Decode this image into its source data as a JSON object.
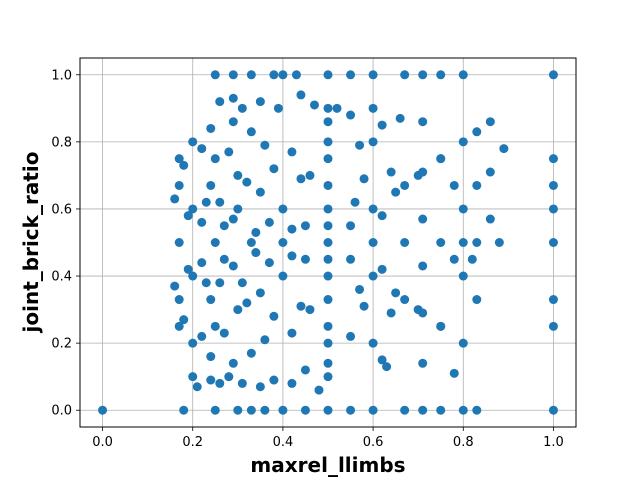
{
  "chart_data": {
    "type": "scatter",
    "xlabel": "maxrel_llimbs",
    "ylabel": "joint_brick_ratio",
    "xlim": [
      -0.05,
      1.05
    ],
    "ylim": [
      -0.05,
      1.05
    ],
    "x_ticks": [
      "0.0",
      "0.2",
      "0.4",
      "0.6",
      "0.8",
      "1.0"
    ],
    "y_ticks": [
      "0.0",
      "0.2",
      "0.4",
      "0.6",
      "0.8",
      "1.0"
    ],
    "grid": true,
    "marker_color": "#1f77b4",
    "series": [
      {
        "points": [
          [
            0.0,
            0.0
          ],
          [
            0.18,
            0.0
          ],
          [
            0.25,
            0.0
          ],
          [
            0.3,
            0.0
          ],
          [
            0.33,
            0.0
          ],
          [
            0.36,
            0.0
          ],
          [
            0.4,
            0.0
          ],
          [
            0.45,
            0.0
          ],
          [
            0.5,
            0.0
          ],
          [
            0.55,
            0.0
          ],
          [
            0.6,
            0.0
          ],
          [
            0.67,
            0.0
          ],
          [
            0.71,
            0.0
          ],
          [
            0.75,
            0.0
          ],
          [
            0.8,
            0.0
          ],
          [
            0.83,
            0.0
          ],
          [
            1.0,
            0.0
          ],
          [
            0.25,
            1.0
          ],
          [
            0.29,
            1.0
          ],
          [
            0.33,
            1.0
          ],
          [
            0.38,
            1.0
          ],
          [
            0.4,
            1.0
          ],
          [
            0.43,
            1.0
          ],
          [
            0.5,
            1.0
          ],
          [
            0.55,
            1.0
          ],
          [
            0.6,
            1.0
          ],
          [
            0.67,
            1.0
          ],
          [
            0.71,
            1.0
          ],
          [
            0.75,
            1.0
          ],
          [
            0.8,
            1.0
          ],
          [
            1.0,
            1.0
          ],
          [
            1.0,
            0.25
          ],
          [
            1.0,
            0.33
          ],
          [
            1.0,
            0.5
          ],
          [
            1.0,
            0.6
          ],
          [
            1.0,
            0.67
          ],
          [
            1.0,
            0.75
          ],
          [
            0.5,
            0.5
          ],
          [
            0.5,
            0.45
          ],
          [
            0.5,
            0.55
          ],
          [
            0.5,
            0.4
          ],
          [
            0.5,
            0.6
          ],
          [
            0.5,
            0.33
          ],
          [
            0.5,
            0.67
          ],
          [
            0.5,
            0.25
          ],
          [
            0.5,
            0.75
          ],
          [
            0.5,
            0.2
          ],
          [
            0.5,
            0.8
          ],
          [
            0.5,
            0.14
          ],
          [
            0.5,
            0.86
          ],
          [
            0.5,
            0.1
          ],
          [
            0.5,
            0.9
          ],
          [
            0.45,
            0.45
          ],
          [
            0.4,
            0.4
          ],
          [
            0.35,
            0.35
          ],
          [
            0.3,
            0.3
          ],
          [
            0.25,
            0.25
          ],
          [
            0.2,
            0.2
          ],
          [
            0.45,
            0.55
          ],
          [
            0.4,
            0.6
          ],
          [
            0.35,
            0.65
          ],
          [
            0.3,
            0.7
          ],
          [
            0.25,
            0.75
          ],
          [
            0.2,
            0.8
          ],
          [
            0.55,
            0.45
          ],
          [
            0.6,
            0.4
          ],
          [
            0.65,
            0.35
          ],
          [
            0.7,
            0.3
          ],
          [
            0.75,
            0.25
          ],
          [
            0.55,
            0.55
          ],
          [
            0.6,
            0.6
          ],
          [
            0.65,
            0.65
          ],
          [
            0.7,
            0.7
          ],
          [
            0.75,
            0.75
          ],
          [
            0.25,
            0.5
          ],
          [
            0.33,
            0.5
          ],
          [
            0.4,
            0.5
          ],
          [
            0.6,
            0.5
          ],
          [
            0.67,
            0.5
          ],
          [
            0.75,
            0.5
          ],
          [
            0.8,
            0.5
          ],
          [
            0.83,
            0.5
          ],
          [
            0.8,
            0.2
          ],
          [
            0.8,
            0.4
          ],
          [
            0.8,
            0.6
          ],
          [
            0.8,
            0.8
          ],
          [
            0.67,
            0.33
          ],
          [
            0.67,
            0.67
          ],
          [
            0.6,
            0.2
          ],
          [
            0.6,
            0.8
          ],
          [
            0.75,
            0.25
          ],
          [
            0.75,
            0.75
          ],
          [
            0.71,
            0.86
          ],
          [
            0.71,
            0.14
          ],
          [
            0.71,
            0.29
          ],
          [
            0.71,
            0.43
          ],
          [
            0.71,
            0.57
          ],
          [
            0.71,
            0.71
          ],
          [
            0.83,
            0.33
          ],
          [
            0.83,
            0.67
          ],
          [
            0.86,
            0.57
          ],
          [
            0.86,
            0.71
          ],
          [
            0.89,
            0.78
          ],
          [
            0.88,
            0.5
          ],
          [
            0.78,
            0.11
          ],
          [
            0.82,
            0.45
          ],
          [
            0.78,
            0.45
          ],
          [
            0.78,
            0.67
          ],
          [
            0.86,
            0.86
          ],
          [
            0.83,
            0.83
          ],
          [
            0.17,
            0.67
          ],
          [
            0.17,
            0.33
          ],
          [
            0.17,
            0.5
          ],
          [
            0.16,
            0.63
          ],
          [
            0.16,
            0.37
          ],
          [
            0.18,
            0.27
          ],
          [
            0.18,
            0.73
          ],
          [
            0.19,
            0.58
          ],
          [
            0.19,
            0.42
          ],
          [
            0.17,
            0.25
          ],
          [
            0.17,
            0.75
          ],
          [
            0.2,
            0.6
          ],
          [
            0.2,
            0.4
          ],
          [
            0.22,
            0.44
          ],
          [
            0.22,
            0.56
          ],
          [
            0.23,
            0.62
          ],
          [
            0.23,
            0.38
          ],
          [
            0.27,
            0.45
          ],
          [
            0.27,
            0.55
          ],
          [
            0.29,
            0.43
          ],
          [
            0.29,
            0.57
          ],
          [
            0.21,
            0.07
          ],
          [
            0.2,
            0.1
          ],
          [
            0.24,
            0.09
          ],
          [
            0.26,
            0.08
          ],
          [
            0.28,
            0.1
          ],
          [
            0.31,
            0.08
          ],
          [
            0.35,
            0.07
          ],
          [
            0.38,
            0.09
          ],
          [
            0.42,
            0.08
          ],
          [
            0.45,
            0.12
          ],
          [
            0.48,
            0.06
          ],
          [
            0.26,
            0.92
          ],
          [
            0.29,
            0.93
          ],
          [
            0.31,
            0.9
          ],
          [
            0.35,
            0.92
          ],
          [
            0.39,
            0.9
          ],
          [
            0.44,
            0.94
          ],
          [
            0.47,
            0.91
          ],
          [
            0.52,
            0.9
          ],
          [
            0.55,
            0.88
          ],
          [
            0.62,
            0.85
          ],
          [
            0.66,
            0.87
          ],
          [
            0.6,
            0.9
          ],
          [
            0.33,
            0.83
          ],
          [
            0.36,
            0.79
          ],
          [
            0.38,
            0.72
          ],
          [
            0.42,
            0.77
          ],
          [
            0.44,
            0.69
          ],
          [
            0.36,
            0.21
          ],
          [
            0.38,
            0.28
          ],
          [
            0.42,
            0.23
          ],
          [
            0.44,
            0.31
          ],
          [
            0.33,
            0.17
          ],
          [
            0.56,
            0.62
          ],
          [
            0.58,
            0.69
          ],
          [
            0.62,
            0.58
          ],
          [
            0.64,
            0.71
          ],
          [
            0.57,
            0.36
          ],
          [
            0.58,
            0.31
          ],
          [
            0.62,
            0.42
          ],
          [
            0.64,
            0.29
          ],
          [
            0.55,
            0.22
          ],
          [
            0.57,
            0.79
          ],
          [
            0.62,
            0.15
          ],
          [
            0.63,
            0.13
          ],
          [
            0.3,
            0.6
          ],
          [
            0.31,
            0.38
          ],
          [
            0.34,
            0.47
          ],
          [
            0.34,
            0.53
          ],
          [
            0.37,
            0.44
          ],
          [
            0.37,
            0.56
          ],
          [
            0.42,
            0.46
          ],
          [
            0.42,
            0.54
          ],
          [
            0.24,
            0.67
          ],
          [
            0.24,
            0.33
          ],
          [
            0.26,
            0.62
          ],
          [
            0.26,
            0.38
          ],
          [
            0.28,
            0.77
          ],
          [
            0.27,
            0.23
          ],
          [
            0.32,
            0.68
          ],
          [
            0.32,
            0.32
          ],
          [
            0.46,
            0.7
          ],
          [
            0.46,
            0.3
          ],
          [
            0.22,
            0.78
          ],
          [
            0.22,
            0.22
          ],
          [
            0.24,
            0.84
          ],
          [
            0.24,
            0.16
          ],
          [
            0.29,
            0.86
          ],
          [
            0.29,
            0.14
          ]
        ]
      }
    ]
  }
}
